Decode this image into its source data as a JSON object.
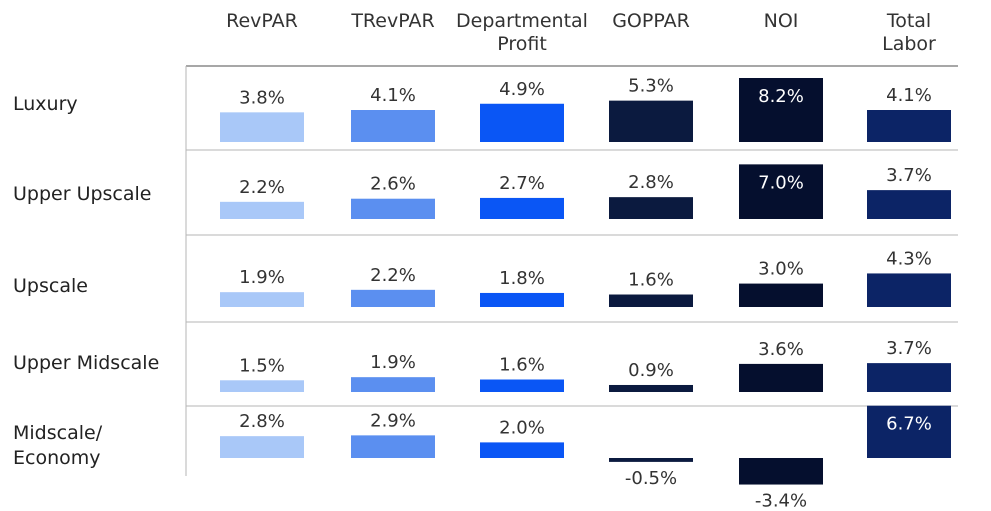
{
  "chart_data": {
    "type": "bar",
    "categories": [
      "Luxury",
      "Upper Upscale",
      "Upscale",
      "Upper Midscale",
      "Midscale/ Economy"
    ],
    "series": [
      {
        "name": "RevPAR",
        "color": "#a9c8f8",
        "values": [
          3.8,
          2.2,
          1.9,
          1.5,
          2.8
        ]
      },
      {
        "name": "TRevPAR",
        "color": "#5b8ff0",
        "values": [
          4.1,
          2.6,
          2.2,
          1.9,
          2.9
        ]
      },
      {
        "name": "Departmental Profit",
        "color": "#0a56f5",
        "values": [
          4.9,
          2.7,
          1.8,
          1.6,
          2.0
        ]
      },
      {
        "name": "GOPPAR",
        "color": "#0b1a3f",
        "values": [
          5.3,
          2.8,
          1.6,
          0.9,
          -0.5
        ]
      },
      {
        "name": "NOI",
        "color": "#050f2e",
        "values": [
          8.2,
          7.0,
          3.0,
          3.6,
          -3.4
        ]
      },
      {
        "name": "Total Labor",
        "color": "#0c2466",
        "values": [
          4.1,
          3.7,
          4.3,
          3.7,
          6.7
        ]
      }
    ],
    "value_labels": [
      [
        "3.8%",
        "2.2%",
        "1.9%",
        "1.5%",
        "2.8%"
      ],
      [
        "4.1%",
        "2.6%",
        "2.2%",
        "1.9%",
        "2.9%"
      ],
      [
        "4.9%",
        "2.7%",
        "1.8%",
        "1.6%",
        "2.0%"
      ],
      [
        "5.3%",
        "2.8%",
        "1.6%",
        "0.9%",
        "-0.5%"
      ],
      [
        "8.2%",
        "7.0%",
        "3.0%",
        "3.6%",
        "-3.4%"
      ],
      [
        "4.1%",
        "3.7%",
        "4.3%",
        "3.7%",
        "6.7%"
      ]
    ],
    "label_inside": [
      [
        false,
        false,
        false,
        false,
        false
      ],
      [
        false,
        false,
        false,
        false,
        false
      ],
      [
        false,
        false,
        false,
        false,
        false
      ],
      [
        false,
        false,
        false,
        false,
        false
      ],
      [
        true,
        true,
        false,
        false,
        false
      ],
      [
        false,
        false,
        false,
        false,
        true
      ]
    ],
    "title": "",
    "xlabel": "",
    "ylabel": "",
    "legend": "column headers",
    "grid": false,
    "axis_unit": "percent"
  }
}
